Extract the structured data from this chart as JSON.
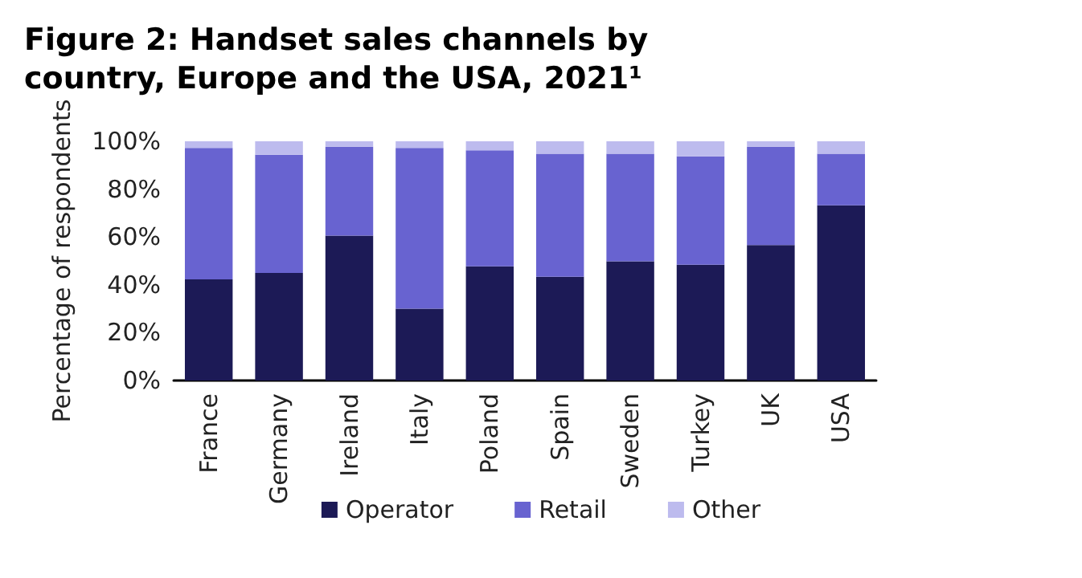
{
  "chart_data": {
    "type": "bar",
    "stacked": true,
    "title": "Figure 2: Handset sales channels by country, Europe and the USA, 2021¹",
    "ylabel": "Percentage of respondents",
    "categories": [
      "France",
      "Germany",
      "Ireland",
      "Italy",
      "Poland",
      "Spain",
      "Sweden",
      "Turkey",
      "UK",
      "USA"
    ],
    "series": [
      {
        "name": "Operator",
        "color": "#1c1a56",
        "values": [
          42.3,
          45,
          60.6,
          30,
          47.7,
          43.4,
          49.8,
          48.4,
          56.6,
          73.2
        ]
      },
      {
        "name": "Retail",
        "color": "#6863d0",
        "values": [
          54.9,
          49.4,
          37.1,
          67.2,
          48.5,
          51.4,
          45,
          45.3,
          41.1,
          21.6
        ]
      },
      {
        "name": "Other",
        "color": "#bdbbee",
        "values": [
          2.8,
          5.6,
          2.3,
          2.8,
          3.8,
          5.2,
          5.2,
          6.3,
          2.3,
          5.2
        ]
      }
    ],
    "ylim": [
      0,
      100
    ],
    "yticks": [
      {
        "value": 0,
        "label": "0%"
      },
      {
        "value": 20,
        "label": "20%"
      },
      {
        "value": 40,
        "label": "40%"
      },
      {
        "value": 60,
        "label": "60%"
      },
      {
        "value": 80,
        "label": "80%"
      },
      {
        "value": 100,
        "label": "100%"
      }
    ],
    "grid": false,
    "legend": "bottom"
  }
}
